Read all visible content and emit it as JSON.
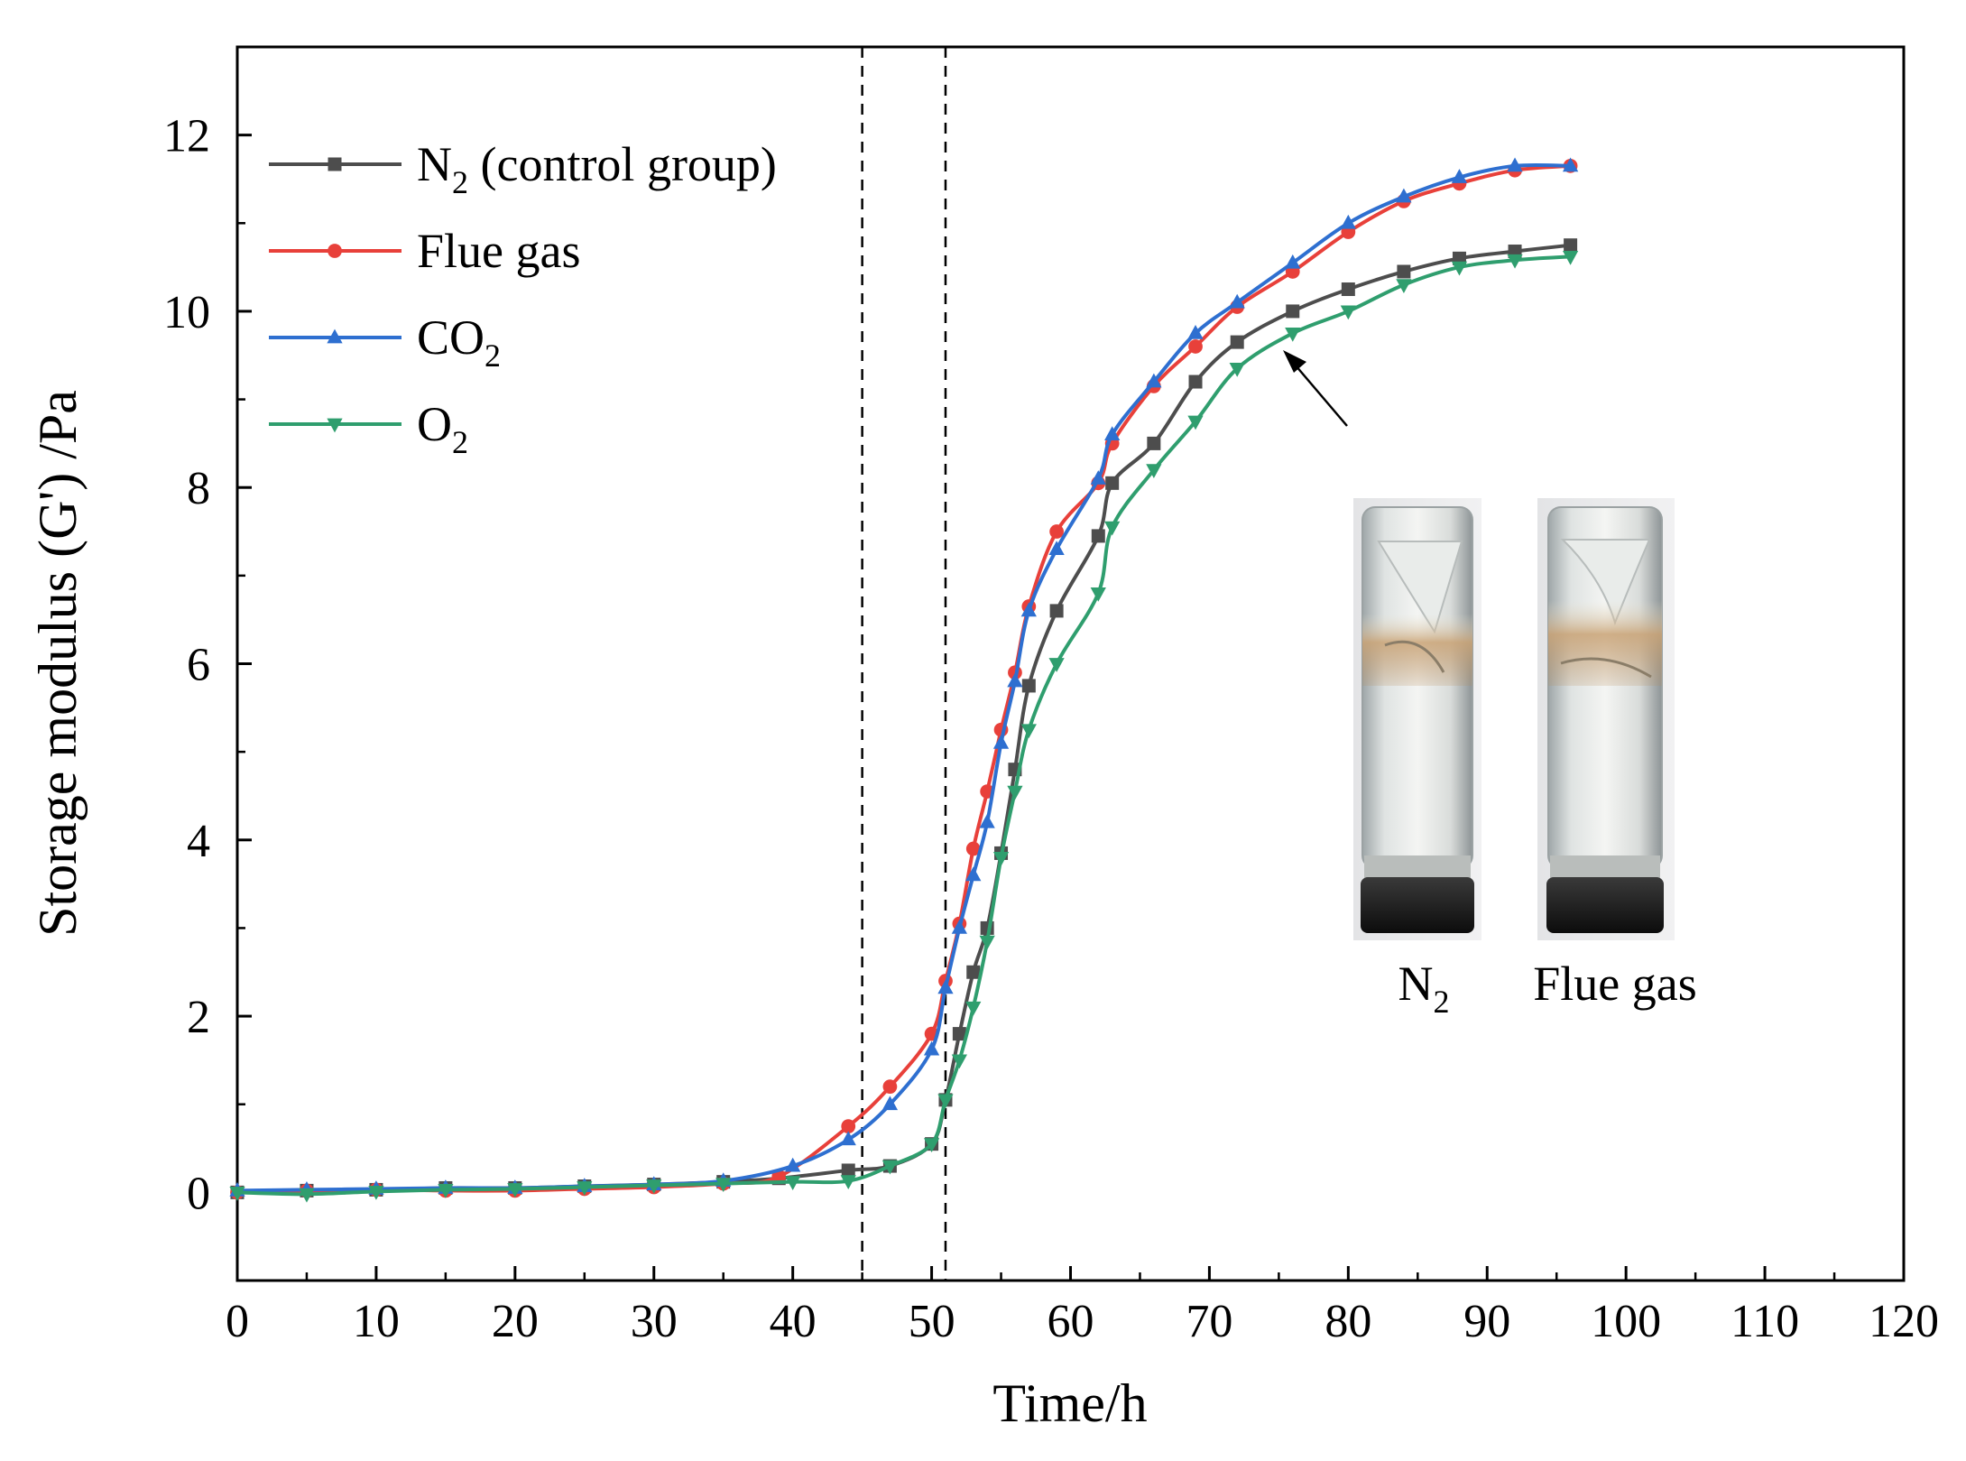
{
  "chart_data": {
    "type": "line",
    "title": "",
    "xlabel": "Time/h",
    "ylabel": "Storage modulus (G') /Pa",
    "xlim": [
      0,
      120
    ],
    "ylim": [
      -1,
      13
    ],
    "x_ticks": [
      "0",
      "10",
      "20",
      "30",
      "40",
      "50",
      "60",
      "70",
      "80",
      "90",
      "100",
      "110",
      "120"
    ],
    "y_ticks": [
      "0",
      "2",
      "4",
      "6",
      "8",
      "10",
      "12"
    ],
    "vertical_reference_lines": [
      45,
      51
    ],
    "legend_position": "top-left",
    "series": [
      {
        "name": "N",
        "subscript": "2",
        "suffix": " (control group)",
        "color": "#4d4d4d",
        "marker": "square",
        "x": [
          0,
          5,
          10,
          15,
          20,
          25,
          30,
          35,
          39,
          44,
          47,
          50,
          51,
          52,
          53,
          54,
          55,
          56,
          57,
          59,
          62,
          63,
          66,
          69,
          72,
          76,
          80,
          84,
          88,
          92,
          96
        ],
        "y": [
          0.0,
          0.02,
          0.03,
          0.05,
          0.05,
          0.07,
          0.09,
          0.12,
          0.16,
          0.25,
          0.3,
          0.55,
          1.05,
          1.8,
          2.5,
          3.0,
          3.85,
          4.8,
          5.75,
          6.6,
          7.45,
          8.05,
          8.5,
          9.2,
          9.65,
          10.0,
          10.25,
          10.45,
          10.6,
          10.68,
          10.75
        ]
      },
      {
        "name": "Flue gas",
        "subscript": "",
        "suffix": "",
        "color": "#e8403a",
        "marker": "circle",
        "x": [
          0,
          5,
          10,
          15,
          20,
          25,
          30,
          35,
          39,
          44,
          47,
          50,
          51,
          52,
          53,
          54,
          55,
          56,
          57,
          59,
          62,
          63,
          66,
          69,
          72,
          76,
          80,
          84,
          88,
          92,
          96
        ],
        "y": [
          0.0,
          0.02,
          0.03,
          0.02,
          0.02,
          0.04,
          0.06,
          0.1,
          0.18,
          0.75,
          1.2,
          1.8,
          2.4,
          3.05,
          3.9,
          4.55,
          5.25,
          5.9,
          6.65,
          7.5,
          8.05,
          8.5,
          9.15,
          9.6,
          10.05,
          10.45,
          10.9,
          11.25,
          11.45,
          11.6,
          11.65
        ]
      },
      {
        "name": "CO",
        "subscript": "2",
        "suffix": "",
        "color": "#2e6fd0",
        "marker": "triangle-up",
        "x": [
          0,
          5,
          10,
          15,
          20,
          25,
          30,
          35,
          40,
          44,
          47,
          50,
          51,
          52,
          53,
          54,
          55,
          56,
          57,
          59,
          62,
          63,
          66,
          69,
          72,
          76,
          80,
          84,
          88,
          92,
          96
        ],
        "y": [
          0.02,
          0.03,
          0.04,
          0.05,
          0.05,
          0.07,
          0.09,
          0.13,
          0.3,
          0.6,
          1.0,
          1.62,
          2.32,
          3.0,
          3.6,
          4.2,
          5.1,
          5.8,
          6.6,
          7.3,
          8.1,
          8.6,
          9.2,
          9.75,
          10.1,
          10.55,
          11.0,
          11.3,
          11.52,
          11.65,
          11.65
        ]
      },
      {
        "name": "O",
        "subscript": "2",
        "suffix": "",
        "color": "#2f9e6e",
        "marker": "triangle-down",
        "x": [
          0,
          5,
          10,
          15,
          20,
          25,
          30,
          35,
          40,
          44,
          47,
          50,
          51,
          52,
          53,
          54,
          55,
          56,
          57,
          59,
          62,
          63,
          66,
          69,
          72,
          76,
          80,
          84,
          88,
          92,
          96
        ],
        "y": [
          0.0,
          -0.02,
          0.01,
          0.03,
          0.04,
          0.06,
          0.08,
          0.1,
          0.12,
          0.13,
          0.3,
          0.55,
          1.05,
          1.5,
          2.1,
          2.85,
          3.8,
          4.55,
          5.25,
          6.0,
          6.8,
          7.55,
          8.2,
          8.75,
          9.35,
          9.75,
          10.0,
          10.3,
          10.5,
          10.58,
          10.62
        ]
      }
    ],
    "inset_photo": {
      "description": "vials",
      "labels": [
        {
          "name": "N",
          "subscript": "2"
        },
        {
          "name": "Flue gas",
          "subscript": ""
        }
      ]
    }
  }
}
